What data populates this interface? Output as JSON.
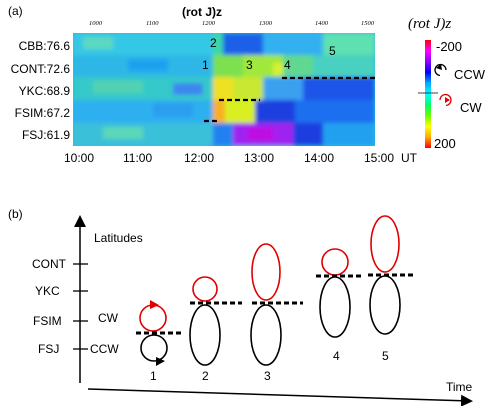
{
  "panel_a": {
    "label": "(a)",
    "title": "(rot J)z",
    "top_axis_ticks": [
      "1000",
      "1100",
      "1200",
      "1300",
      "1400",
      "1500"
    ],
    "stations": [
      "CBB:76.6",
      "CONT:72.6",
      "YKC:68.9",
      "FSIM:67.2",
      "FSJ:61.9"
    ],
    "time_ticks": [
      "10:00",
      "11:00",
      "12:00",
      "13:00",
      "14:00",
      "15:00"
    ],
    "time_unit": "UT",
    "events": [
      "1",
      "2",
      "3",
      "4",
      "5"
    ],
    "colorbar": {
      "title": "(rot J)z",
      "min_label": "-200",
      "max_label": "200",
      "ccw_label": "CCW",
      "cw_label": "CW",
      "colors": [
        "#ff0000",
        "#ff00ff",
        "#8800ff",
        "#0000ff",
        "#00aaff",
        "#00ffff",
        "#00ff66",
        "#66ff00",
        "#ffff00",
        "#ffaa00",
        "#ff0000"
      ]
    }
  },
  "panel_b": {
    "label": "(b)",
    "y_axis_label": "Latitudes",
    "y_ticks": [
      "CONT",
      "YKC",
      "FSIM",
      "FSJ"
    ],
    "cw_label": "CW",
    "ccw_label": "CCW",
    "stages": [
      "1",
      "2",
      "3",
      "4",
      "5"
    ],
    "x_axis_label": "Time",
    "cw_color": "#e00000",
    "ccw_color": "#000000"
  }
}
